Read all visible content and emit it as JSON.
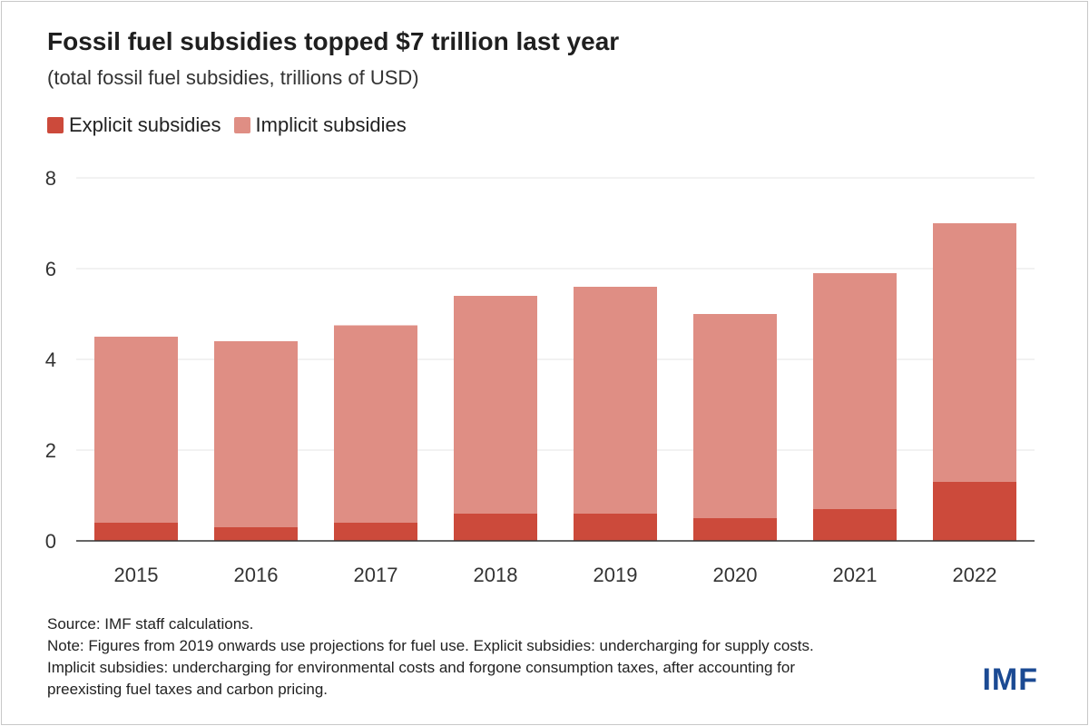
{
  "header": {
    "title": "Fossil fuel subsidies topped $7 trillion last year",
    "subtitle": "(total fossil fuel subsidies, trillions of USD)"
  },
  "legend": {
    "explicit_label": "Explicit subsidies",
    "implicit_label": "Implicit subsidies"
  },
  "colors": {
    "explicit": "#cc4a3b",
    "implicit": "#df8e84",
    "grid": "#e6e6e6",
    "axis": "#333333"
  },
  "chart_data": {
    "type": "bar",
    "stacked": true,
    "categories": [
      "2015",
      "2016",
      "2017",
      "2018",
      "2019",
      "2020",
      "2021",
      "2022"
    ],
    "series": [
      {
        "name": "Explicit subsidies",
        "values": [
          0.4,
          0.3,
          0.4,
          0.6,
          0.6,
          0.5,
          0.7,
          1.3
        ]
      },
      {
        "name": "Implicit subsidies",
        "values": [
          4.1,
          4.1,
          4.35,
          4.8,
          5.0,
          4.5,
          5.2,
          5.7
        ]
      }
    ],
    "yticks": [
      "0",
      "2",
      "4",
      "6",
      "8"
    ],
    "ylim": [
      0,
      8
    ],
    "grid": true,
    "legend_position": "top-left"
  },
  "footer": {
    "source": "Source: IMF staff calculations.",
    "note_line1": "Note: Figures from 2019 onwards use projections for fuel use. Explicit subsidies: undercharging for supply costs.",
    "note_line2": "Implicit subsidies: undercharging for environmental costs and forgone consumption taxes, after accounting for",
    "note_line3": "preexisting fuel taxes and carbon pricing."
  },
  "logo": {
    "text": "IMF"
  }
}
